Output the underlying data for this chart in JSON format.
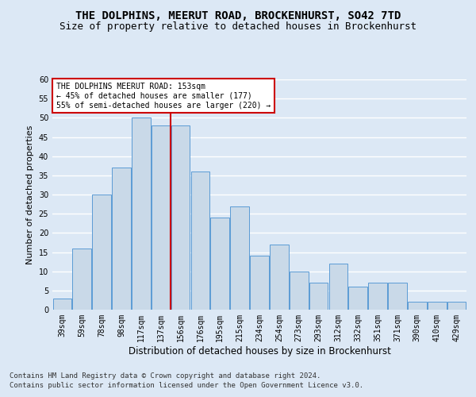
{
  "title": "THE DOLPHINS, MEERUT ROAD, BROCKENHURST, SO42 7TD",
  "subtitle": "Size of property relative to detached houses in Brockenhurst",
  "xlabel": "Distribution of detached houses by size in Brockenhurst",
  "ylabel": "Number of detached properties",
  "footer1": "Contains HM Land Registry data © Crown copyright and database right 2024.",
  "footer2": "Contains public sector information licensed under the Open Government Licence v3.0.",
  "categories": [
    "39sqm",
    "59sqm",
    "78sqm",
    "98sqm",
    "117sqm",
    "137sqm",
    "156sqm",
    "176sqm",
    "195sqm",
    "215sqm",
    "234sqm",
    "254sqm",
    "273sqm",
    "293sqm",
    "312sqm",
    "332sqm",
    "351sqm",
    "371sqm",
    "390sqm",
    "410sqm",
    "429sqm"
  ],
  "values": [
    3,
    16,
    30,
    37,
    50,
    48,
    48,
    36,
    24,
    27,
    14,
    17,
    10,
    7,
    12,
    6,
    7,
    7,
    2,
    2,
    2
  ],
  "bar_color": "#c9d9e8",
  "bar_edge_color": "#5b9bd5",
  "vline_x_idx": 6,
  "vline_color": "#cc0000",
  "annotation_title": "THE DOLPHINS MEERUT ROAD: 153sqm",
  "annotation_line1": "← 45% of detached houses are smaller (177)",
  "annotation_line2": "55% of semi-detached houses are larger (220) →",
  "annotation_box_color": "#ffffff",
  "annotation_box_edge": "#cc0000",
  "ylim": [
    0,
    60
  ],
  "yticks": [
    0,
    5,
    10,
    15,
    20,
    25,
    30,
    35,
    40,
    45,
    50,
    55,
    60
  ],
  "bg_color": "#dce8f5",
  "plot_bg_color": "#dce8f5",
  "grid_color": "#ffffff",
  "title_fontsize": 10,
  "subtitle_fontsize": 9,
  "ylabel_fontsize": 8,
  "xlabel_fontsize": 8.5,
  "tick_fontsize": 7,
  "annot_fontsize": 7,
  "footer_fontsize": 6.5
}
